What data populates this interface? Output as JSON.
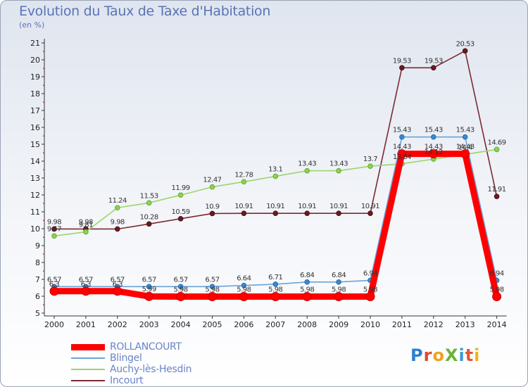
{
  "header": {
    "title": "Evolution du Taux de Taxe d'Habitation",
    "subtitle": "(en %)"
  },
  "logo": {
    "text": "ProXiti"
  },
  "chart_data": {
    "type": "line",
    "title": "Evolution du Taux de Taxe d'Habitation",
    "ylabel": "(en %)",
    "xlabel": "",
    "x": [
      "2000",
      "2001",
      "2002",
      "2003",
      "2004",
      "2005",
      "2006",
      "2007",
      "2008",
      "2009",
      "2010",
      "2011",
      "2012",
      "2013",
      "2014"
    ],
    "ylim": [
      5,
      21
    ],
    "yticks": [
      5,
      6,
      7,
      8,
      9,
      10,
      11,
      12,
      13,
      14,
      15,
      16,
      17,
      18,
      19,
      20,
      21
    ],
    "grid": false,
    "legend_position": "bottom-left",
    "series": [
      {
        "name": "ROLLANCOURT",
        "color": "#ff0000",
        "values": [
          6.3,
          6.3,
          6.3,
          5.99,
          5.98,
          5.98,
          5.98,
          5.98,
          5.98,
          5.98,
          5.98,
          14.43,
          14.43,
          14.43,
          5.98
        ],
        "labels": [
          "6.3",
          "6.3",
          "6.3",
          "5.99",
          "5.98",
          "5.98",
          "5.98",
          "5.98",
          "5.98",
          "5.98",
          "5.98",
          "14.43",
          "14.43",
          "14.43",
          "5.98"
        ]
      },
      {
        "name": "Blingel",
        "color": "#6aa4d8",
        "values": [
          6.57,
          6.57,
          6.57,
          6.57,
          6.57,
          6.57,
          6.64,
          6.71,
          6.84,
          6.84,
          6.94,
          15.43,
          15.43,
          15.43,
          6.94
        ],
        "labels": [
          "6.57",
          "6.57",
          "6.57",
          "6.57",
          "6.57",
          "6.57",
          "6.64",
          "6.71",
          "6.84",
          "6.84",
          "6.94",
          "15.43",
          "15.43",
          "15.43",
          "6.94"
        ]
      },
      {
        "name": "Auchy-lès-Hesdin",
        "color": "#9bd66b",
        "values": [
          9.57,
          9.81,
          11.24,
          11.53,
          11.99,
          12.47,
          12.78,
          13.1,
          13.43,
          13.43,
          13.7,
          13.84,
          14.12,
          14.4,
          14.69
        ],
        "labels": [
          "9.57",
          "9.81",
          "11.24",
          "11.53",
          "11.99",
          "12.47",
          "12.78",
          "13.1",
          "13.43",
          "13.43",
          "13.7",
          "13.84",
          "14.12",
          "14.4",
          "14.69"
        ]
      },
      {
        "name": "Incourt",
        "color": "#7a2a33",
        "values": [
          9.98,
          9.98,
          9.98,
          10.28,
          10.59,
          10.9,
          10.91,
          10.91,
          10.91,
          10.91,
          10.91,
          19.53,
          19.53,
          20.53,
          11.91
        ],
        "labels": [
          "9.98",
          "9.98",
          "9.98",
          "10.28",
          "10.59",
          "10.9",
          "10.91",
          "10.91",
          "10.91",
          "10.91",
          "10.91",
          "19.53",
          "19.53",
          "20.53",
          "11.91"
        ]
      }
    ]
  }
}
